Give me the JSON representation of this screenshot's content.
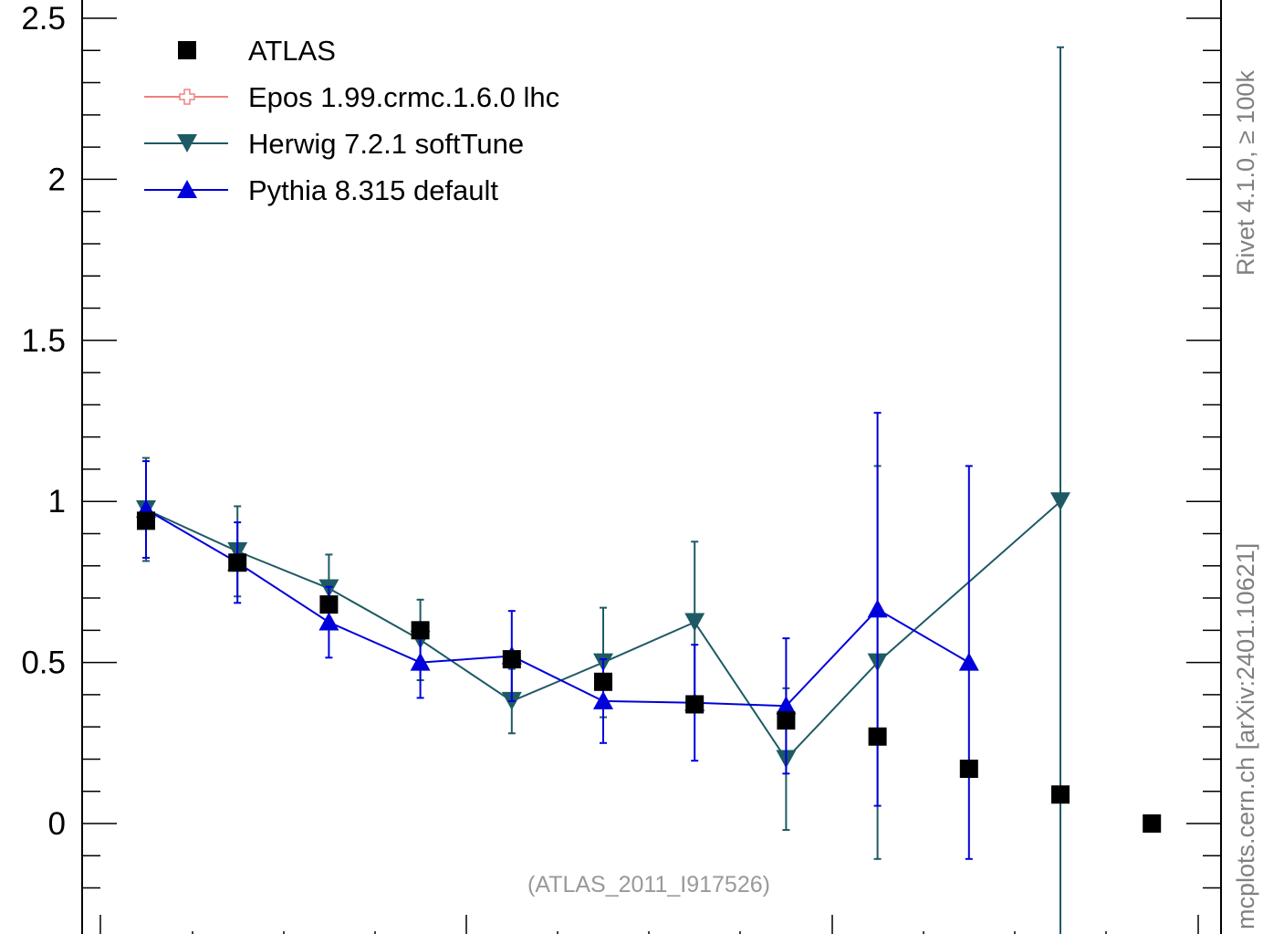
{
  "chart_data": {
    "type": "scatter",
    "title": "",
    "xlabel": "",
    "ylabel": "",
    "ylim": [
      -0.29,
      2.57
    ],
    "y_major_ticks": [
      0,
      0.5,
      1,
      1.5,
      2,
      2.5
    ],
    "y_tick_labels": [
      "0",
      "0.5",
      "1",
      "1.5",
      "2",
      "2.5"
    ],
    "legend_position": "top-left",
    "watermark_right_top": "Rivet 4.1.0, ≥ 100k",
    "watermark_right_bottom": "mcplots.cern.ch [arXiv:2401.10621]",
    "analysis_label": "(ATLAS_2011_I917526)",
    "x": [
      1,
      2,
      3,
      4,
      5,
      6,
      7,
      8,
      9,
      10,
      11,
      12
    ],
    "series": [
      {
        "name": "ATLAS",
        "color": "#000000",
        "marker": "square",
        "line": false,
        "x": [
          1,
          2,
          3,
          4,
          5,
          6,
          7,
          8,
          9,
          10,
          11,
          12
        ],
        "y": [
          0.94,
          0.81,
          0.68,
          0.6,
          0.51,
          0.44,
          0.37,
          0.32,
          0.27,
          0.17,
          0.09,
          0.0
        ],
        "err": [
          0,
          0,
          0,
          0,
          0,
          0,
          0,
          0,
          0,
          0,
          0,
          0
        ]
      },
      {
        "name": "Epos 1.99.crmc.1.6.0 lhc",
        "color": "#f08080",
        "marker": "open-cross",
        "line": true,
        "x": [],
        "y": [],
        "err": []
      },
      {
        "name": "Herwig 7.2.1 softTune",
        "color": "#1e5a64",
        "marker": "triangle-down",
        "line": true,
        "x": [
          1,
          2,
          3,
          4,
          5,
          6,
          7,
          8,
          9,
          11
        ],
        "y": [
          0.975,
          0.845,
          0.73,
          0.57,
          0.38,
          0.5,
          0.625,
          0.2,
          0.5,
          1.0
        ],
        "err": [
          0.16,
          0.14,
          0.105,
          0.125,
          0.1,
          0.17,
          0.25,
          0.22,
          0.61,
          1.41
        ]
      },
      {
        "name": "Pythia 8.315 default",
        "color": "#0000dd",
        "marker": "triangle-up",
        "line": true,
        "x": [
          1,
          2,
          3,
          4,
          5,
          6,
          7,
          8,
          9,
          10
        ],
        "y": [
          0.975,
          0.81,
          0.625,
          0.5,
          0.52,
          0.38,
          0.375,
          0.365,
          0.665,
          0.5
        ],
        "err": [
          0.15,
          0.125,
          0.11,
          0.11,
          0.14,
          0.13,
          0.18,
          0.21,
          0.61,
          0.61
        ]
      }
    ]
  }
}
